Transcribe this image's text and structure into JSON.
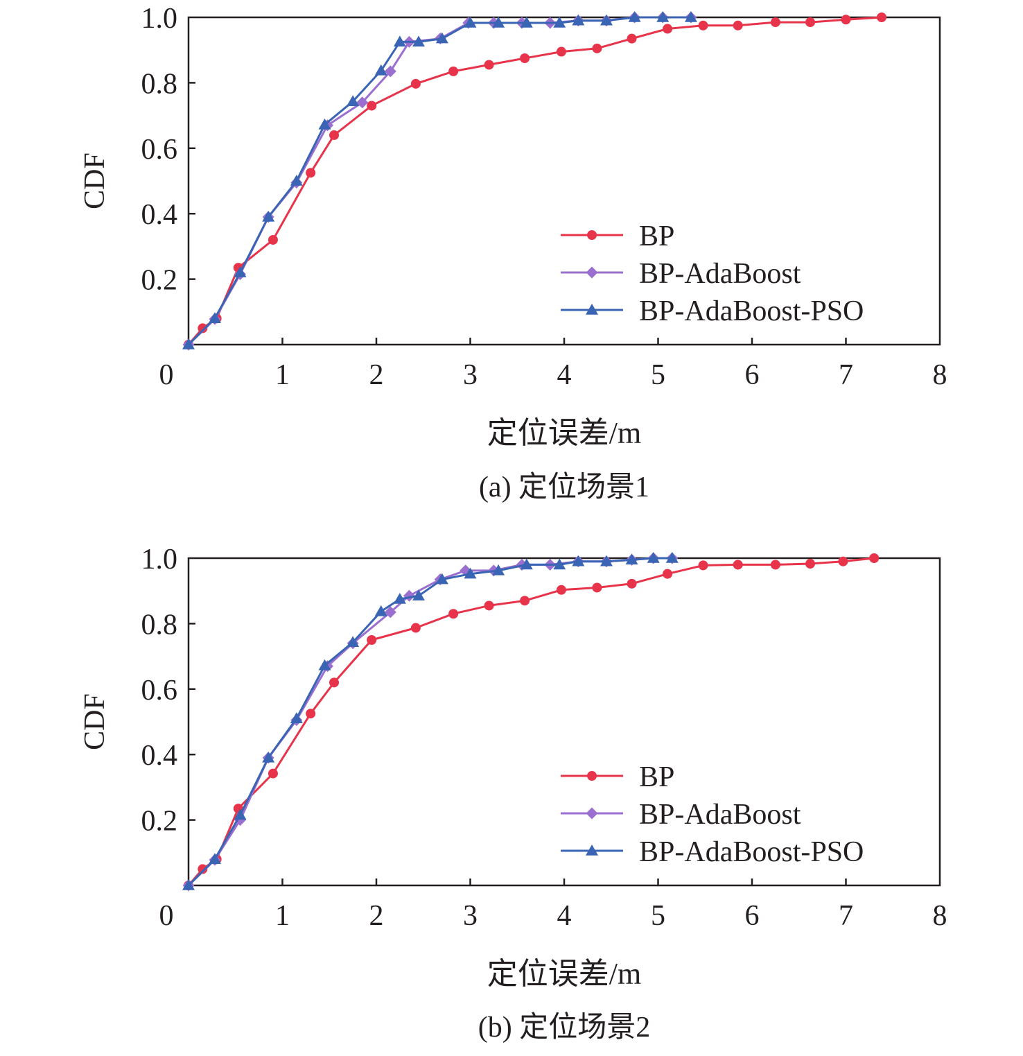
{
  "chart_data": [
    {
      "type": "line",
      "caption": "(a) 定位场景1",
      "xlabel": "定位误差/m",
      "ylabel": "CDF",
      "xlim": [
        0,
        8
      ],
      "ylim": [
        0,
        1.0
      ],
      "xticks": [
        "0",
        "1",
        "2",
        "3",
        "4",
        "5",
        "6",
        "7",
        "8"
      ],
      "yticks": [
        "0.2",
        "0.4",
        "0.6",
        "0.8",
        "1.0"
      ],
      "legend_position": "bottom-right",
      "series": [
        {
          "name": "BP",
          "color": "#e8344a",
          "marker": "circle",
          "x": [
            0,
            0.15,
            0.3,
            0.53,
            0.9,
            1.3,
            1.55,
            1.95,
            2.42,
            2.82,
            3.2,
            3.58,
            3.97,
            4.35,
            4.72,
            5.1,
            5.48,
            5.85,
            6.25,
            6.62,
            7.0,
            7.38
          ],
          "y": [
            0,
            0.05,
            0.08,
            0.235,
            0.32,
            0.525,
            0.64,
            0.73,
            0.797,
            0.835,
            0.855,
            0.875,
            0.895,
            0.905,
            0.935,
            0.965,
            0.975,
            0.975,
            0.985,
            0.985,
            0.993,
            1.0
          ]
        },
        {
          "name": "BP-AdaBoost",
          "color": "#9a6fd0",
          "marker": "diamond",
          "x": [
            0,
            0.28,
            0.55,
            0.85,
            1.15,
            1.48,
            1.85,
            2.15,
            2.35,
            2.68,
            2.98,
            3.25,
            3.55,
            3.85,
            4.15,
            4.45,
            4.75,
            5.05,
            5.35
          ],
          "y": [
            0,
            0.078,
            0.215,
            0.39,
            0.495,
            0.67,
            0.74,
            0.835,
            0.925,
            0.935,
            0.983,
            0.983,
            0.983,
            0.983,
            0.99,
            0.99,
            1.0,
            1.0,
            1.0
          ]
        },
        {
          "name": "BP-AdaBoost-PSO",
          "color": "#3a64b4",
          "marker": "triangle",
          "x": [
            0,
            0.28,
            0.55,
            0.85,
            1.15,
            1.45,
            1.75,
            2.05,
            2.25,
            2.45,
            2.7,
            3.0,
            3.3,
            3.6,
            3.95,
            4.15,
            4.45,
            4.75,
            5.05,
            5.35
          ],
          "y": [
            0,
            0.08,
            0.22,
            0.39,
            0.5,
            0.672,
            0.743,
            0.837,
            0.925,
            0.925,
            0.935,
            0.983,
            0.983,
            0.983,
            0.983,
            0.99,
            0.99,
            1.0,
            1.0,
            1.0
          ]
        }
      ]
    },
    {
      "type": "line",
      "caption": "(b) 定位场景2",
      "xlabel": "定位误差/m",
      "ylabel": "CDF",
      "xlim": [
        0,
        8
      ],
      "ylim": [
        0,
        1.0
      ],
      "xticks": [
        "0",
        "1",
        "2",
        "3",
        "4",
        "5",
        "6",
        "7",
        "8"
      ],
      "yticks": [
        "0.2",
        "0.4",
        "0.6",
        "0.8",
        "1.0"
      ],
      "legend_position": "bottom-right",
      "series": [
        {
          "name": "BP",
          "color": "#e8344a",
          "marker": "circle",
          "x": [
            0,
            0.15,
            0.3,
            0.53,
            0.9,
            1.3,
            1.55,
            1.95,
            2.42,
            2.82,
            3.2,
            3.58,
            3.97,
            4.35,
            4.72,
            5.1,
            5.48,
            5.85,
            6.25,
            6.62,
            6.97,
            7.3
          ],
          "y": [
            0,
            0.05,
            0.08,
            0.235,
            0.342,
            0.525,
            0.62,
            0.75,
            0.787,
            0.83,
            0.855,
            0.87,
            0.903,
            0.91,
            0.922,
            0.952,
            0.978,
            0.98,
            0.98,
            0.983,
            0.99,
            1.0
          ]
        },
        {
          "name": "BP-AdaBoost",
          "color": "#9a6fd0",
          "marker": "diamond",
          "x": [
            0,
            0.28,
            0.55,
            0.85,
            1.15,
            1.48,
            1.75,
            2.15,
            2.35,
            2.68,
            2.95,
            3.25,
            3.55,
            3.85,
            4.15,
            4.45,
            4.72,
            4.95,
            5.15
          ],
          "y": [
            0,
            0.078,
            0.2,
            0.39,
            0.505,
            0.67,
            0.74,
            0.835,
            0.885,
            0.935,
            0.962,
            0.962,
            0.98,
            0.98,
            0.99,
            0.99,
            0.995,
            1.0,
            1.0
          ]
        },
        {
          "name": "BP-AdaBoost-PSO",
          "color": "#3a64b4",
          "marker": "triangle",
          "x": [
            0,
            0.28,
            0.55,
            0.85,
            1.15,
            1.45,
            1.75,
            2.05,
            2.25,
            2.45,
            2.7,
            3.0,
            3.3,
            3.6,
            3.95,
            4.15,
            4.45,
            4.72,
            4.95,
            5.15
          ],
          "y": [
            0,
            0.08,
            0.215,
            0.39,
            0.51,
            0.672,
            0.743,
            0.837,
            0.875,
            0.885,
            0.935,
            0.952,
            0.962,
            0.98,
            0.98,
            0.99,
            0.99,
            0.995,
            1.0,
            1.0
          ]
        }
      ]
    }
  ]
}
